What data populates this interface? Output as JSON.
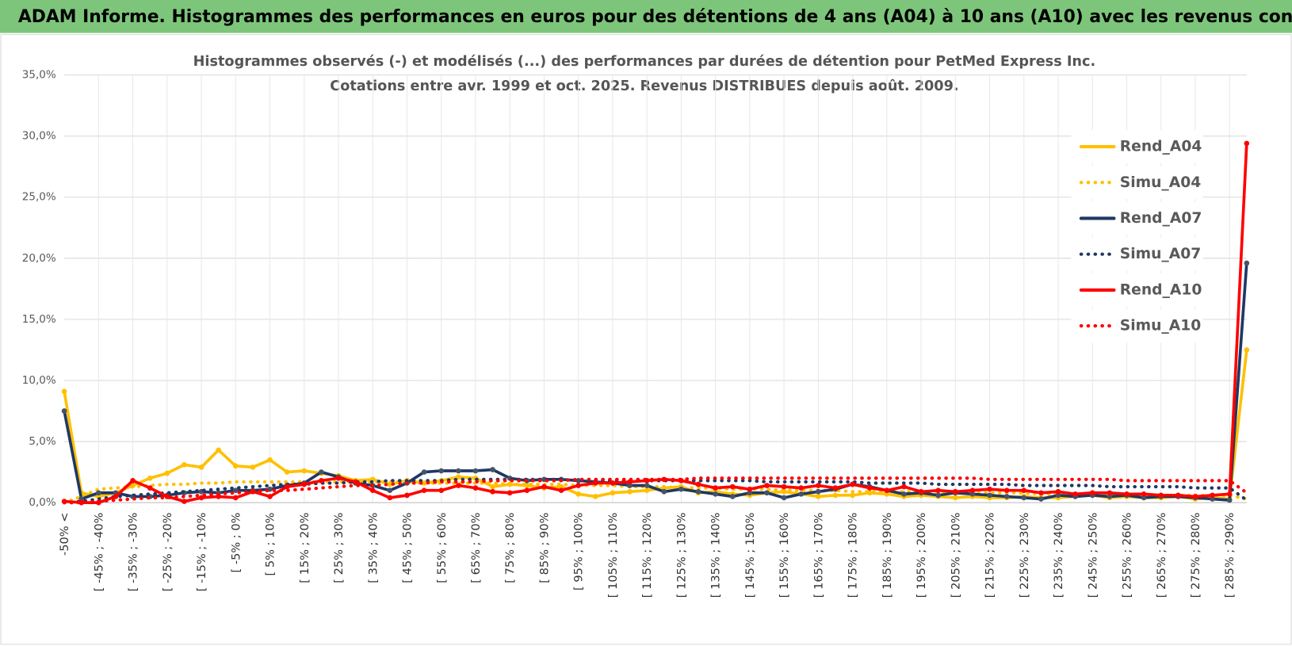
{
  "header": {
    "title": "ADAM Informe. Histogrammes des performances en euros pour des détentions de 4 ans (A04) à 10 ans (A10) avec les revenus connus distribués"
  },
  "chart_data": {
    "type": "line",
    "title": "Histogrammes observés (-) et modélisés (...) des performances par durées de détention pour PetMed Express Inc.",
    "subtitle": "Cotations entre avr. 1999 et oct. 2025. Revenus DISTRIBUES depuis août. 2009.",
    "categories": [
      "-50% <",
      null,
      "[ -45% ; -40%",
      null,
      "[ -35% ; -30%",
      null,
      "[ -25% ; -20%",
      null,
      "[ -15% ; -10%",
      null,
      "[ -5% ; 0%",
      null,
      "[ 5% ; 10%",
      null,
      "[ 15% ; 20%",
      null,
      "[ 25% ; 30%",
      null,
      "[ 35% ; 40%",
      null,
      "[ 45% ; 50%",
      null,
      "[ 55% ; 60%",
      null,
      "[ 65% ; 70%",
      null,
      "[ 75% ; 80%",
      null,
      "[ 85% ; 90%",
      null,
      "[ 95% ; 100%",
      null,
      "[ 105% ; 110%",
      null,
      "[ 115% ; 120%",
      null,
      "[ 125% ; 130%",
      null,
      "[ 135% ; 140%",
      null,
      "[ 145% ; 150%",
      null,
      "[ 155% ; 160%",
      null,
      "[ 165% ; 170%",
      null,
      "[ 175% ; 180%",
      null,
      "[ 185% ; 190%",
      null,
      "[ 195% ; 200%",
      null,
      "[ 205% ; 210%",
      null,
      "[ 215% ; 220%",
      null,
      "[ 225% ; 230%",
      null,
      "[ 235% ; 240%",
      null,
      "[ 245% ; 250%",
      null,
      "[ 255% ; 260%",
      null,
      "[ 265% ; 270%",
      null,
      "[ 275% ; 280%",
      null,
      "[ 285% ; 290%",
      null
    ],
    "ylim": [
      0,
      35
    ],
    "yticks": [
      {
        "value": 0,
        "label": "0,0%"
      },
      {
        "value": 5,
        "label": "5,0%"
      },
      {
        "value": 10,
        "label": "10,0%"
      },
      {
        "value": 15,
        "label": "15,0%"
      },
      {
        "value": 20,
        "label": "20,0%"
      },
      {
        "value": 25,
        "label": "25,0%"
      },
      {
        "value": 30,
        "label": "30,0%"
      },
      {
        "value": 35,
        "label": "35,0%"
      }
    ],
    "grid": true,
    "legend": "right",
    "series": [
      {
        "name": "Rend_A04",
        "color": "#ffc000",
        "style": "solid",
        "values": [
          9.1,
          0.8,
          0.5,
          0.8,
          1.4,
          2.0,
          2.4,
          3.1,
          2.9,
          4.3,
          3.0,
          2.9,
          3.5,
          2.5,
          2.6,
          2.4,
          2.2,
          1.8,
          1.9,
          1.5,
          1.8,
          1.6,
          1.8,
          2.1,
          2.0,
          1.3,
          1.5,
          1.4,
          1.2,
          1.3,
          0.7,
          0.5,
          0.8,
          0.9,
          1.0,
          1.2,
          1.3,
          0.8,
          0.9,
          0.7,
          0.6,
          0.8,
          0.9,
          0.7,
          0.5,
          0.6,
          0.6,
          0.8,
          0.7,
          0.5,
          0.6,
          0.5,
          0.4,
          0.5,
          0.4,
          0.4,
          0.5,
          0.4,
          0.4,
          0.5,
          0.6,
          0.4,
          0.5,
          0.4,
          0.4,
          0.5,
          0.3,
          0.4,
          0.3,
          12.5
        ]
      },
      {
        "name": "Simu_A04",
        "color": "#ffc000",
        "style": "dotted",
        "values": [
          0.0,
          0.5,
          1.1,
          1.2,
          1.3,
          1.4,
          1.5,
          1.5,
          1.6,
          1.6,
          1.7,
          1.7,
          1.7,
          1.7,
          1.7,
          1.7,
          1.7,
          1.7,
          1.7,
          1.7,
          1.7,
          1.6,
          1.6,
          1.6,
          1.6,
          1.6,
          1.5,
          1.5,
          1.5,
          1.5,
          1.4,
          1.4,
          1.4,
          1.3,
          1.3,
          1.3,
          1.2,
          1.2,
          1.2,
          1.1,
          1.1,
          1.1,
          1.0,
          1.0,
          1.0,
          1.0,
          0.9,
          0.9,
          0.9,
          0.9,
          0.9,
          0.8,
          0.8,
          0.8,
          0.8,
          0.8,
          0.8,
          0.7,
          0.7,
          0.7,
          0.7,
          0.7,
          0.7,
          0.6,
          0.6,
          0.6,
          0.6,
          0.6,
          0.6,
          0.3
        ]
      },
      {
        "name": "Rend_A07",
        "color": "#1f3864",
        "style": "solid",
        "values": [
          7.5,
          0.3,
          0.8,
          0.8,
          0.5,
          0.5,
          0.6,
          0.8,
          0.9,
          0.8,
          1.0,
          1.0,
          1.1,
          1.4,
          1.6,
          2.5,
          2.1,
          1.6,
          1.4,
          1.0,
          1.6,
          2.5,
          2.6,
          2.6,
          2.6,
          2.7,
          2.0,
          1.8,
          1.9,
          1.9,
          1.8,
          1.7,
          1.6,
          1.4,
          1.4,
          0.9,
          1.1,
          0.9,
          0.7,
          0.5,
          0.8,
          0.8,
          0.4,
          0.7,
          0.9,
          1.1,
          1.5,
          1.3,
          1.0,
          0.7,
          0.8,
          0.6,
          0.8,
          0.7,
          0.6,
          0.5,
          0.4,
          0.3,
          0.6,
          0.5,
          0.6,
          0.5,
          0.6,
          0.4,
          0.5,
          0.5,
          0.4,
          0.3,
          0.2,
          19.6
        ]
      },
      {
        "name": "Simu_A07",
        "color": "#1f3864",
        "style": "dotted",
        "values": [
          0.0,
          0.1,
          0.3,
          0.5,
          0.6,
          0.7,
          0.8,
          0.9,
          1.0,
          1.1,
          1.2,
          1.3,
          1.4,
          1.5,
          1.5,
          1.6,
          1.6,
          1.7,
          1.7,
          1.8,
          1.8,
          1.8,
          1.8,
          1.9,
          1.9,
          1.9,
          1.9,
          1.9,
          1.9,
          1.9,
          1.8,
          1.8,
          1.8,
          1.8,
          1.8,
          1.8,
          1.8,
          1.8,
          1.8,
          1.8,
          1.8,
          1.7,
          1.7,
          1.7,
          1.7,
          1.7,
          1.7,
          1.6,
          1.6,
          1.6,
          1.6,
          1.5,
          1.5,
          1.5,
          1.5,
          1.5,
          1.4,
          1.4,
          1.4,
          1.4,
          1.4,
          1.3,
          1.3,
          1.3,
          1.3,
          1.3,
          1.2,
          1.2,
          1.2,
          0.2
        ]
      },
      {
        "name": "Rend_A10",
        "color": "#ff0000",
        "style": "solid",
        "values": [
          0.1,
          0.0,
          0.0,
          0.5,
          1.8,
          1.2,
          0.5,
          0.1,
          0.4,
          0.5,
          0.4,
          0.9,
          0.5,
          1.3,
          1.5,
          1.8,
          2.0,
          1.7,
          1.0,
          0.4,
          0.6,
          1.0,
          1.0,
          1.4,
          1.2,
          0.9,
          0.8,
          1.0,
          1.3,
          1.0,
          1.4,
          1.6,
          1.6,
          1.7,
          1.8,
          1.9,
          1.8,
          1.5,
          1.2,
          1.3,
          1.1,
          1.4,
          1.3,
          1.2,
          1.4,
          1.2,
          1.5,
          1.2,
          1.0,
          1.3,
          0.9,
          1.0,
          0.9,
          1.0,
          1.1,
          1.0,
          1.0,
          0.8,
          0.9,
          0.7,
          0.8,
          0.8,
          0.7,
          0.7,
          0.6,
          0.6,
          0.5,
          0.6,
          0.7,
          29.4
        ]
      },
      {
        "name": "Simu_A10",
        "color": "#ff0000",
        "style": "dotted",
        "values": [
          0.0,
          0.0,
          0.1,
          0.2,
          0.3,
          0.4,
          0.4,
          0.5,
          0.6,
          0.7,
          0.8,
          0.9,
          1.0,
          1.0,
          1.1,
          1.2,
          1.3,
          1.4,
          1.4,
          1.5,
          1.6,
          1.6,
          1.7,
          1.7,
          1.7,
          1.8,
          1.8,
          1.8,
          1.8,
          1.8,
          1.9,
          1.9,
          1.9,
          1.9,
          1.9,
          1.9,
          1.9,
          2.0,
          2.0,
          2.0,
          2.0,
          2.0,
          2.0,
          2.0,
          2.0,
          2.0,
          2.0,
          2.0,
          2.0,
          2.0,
          2.0,
          2.0,
          2.0,
          2.0,
          1.9,
          1.9,
          1.9,
          1.9,
          1.9,
          1.9,
          1.9,
          1.9,
          1.8,
          1.8,
          1.8,
          1.8,
          1.8,
          1.8,
          1.8,
          0.8
        ]
      }
    ]
  }
}
